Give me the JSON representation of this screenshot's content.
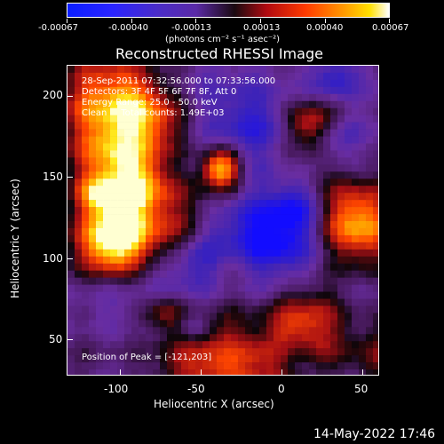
{
  "colorbar": {
    "ticks": [
      "-0.00067",
      "-0.00040",
      "-0.00013",
      "0.00013",
      "0.00040",
      "0.00067"
    ],
    "unit": "(photons cm⁻² s⁻¹ asec⁻²)"
  },
  "title": "Reconstructed RHESSI Image",
  "overlay": {
    "line1": "28-Sep-2011 07:32:56.000 to 07:33:56.000",
    "line2": "Detectors: 3F 4F 5F 6F 7F 8F, Att 0",
    "line3": "Energy Range: 25.0 - 50.0 keV",
    "line4": "Clean     Total counts: 1.49E+03",
    "peak": "Position of Peak = [-121,203]"
  },
  "axes": {
    "xlabel": "Heliocentric X (arcsec)",
    "ylabel": "Heliocentric Y (arcsec)",
    "xticks": [
      "-100",
      "-50",
      "0",
      "50"
    ],
    "yticks": [
      "200",
      "150",
      "100",
      "50"
    ]
  },
  "footer": {
    "date": "14-May-2022 17:46"
  },
  "chart_data": {
    "type": "heatmap",
    "title": "Reconstructed RHESSI Image",
    "xlabel": "Heliocentric X (arcsec)",
    "ylabel": "Heliocentric Y (arcsec)",
    "xlim": [
      -133,
      60
    ],
    "ylim": [
      25,
      220
    ],
    "colorbar_range": [
      -0.00067,
      0.00067
    ],
    "colormap": "blue-purple-red-yellow-white",
    "peak_position": [
      -121,
      203
    ]
  },
  "colors": {
    "background": "#000000",
    "text": "#ffffff"
  }
}
